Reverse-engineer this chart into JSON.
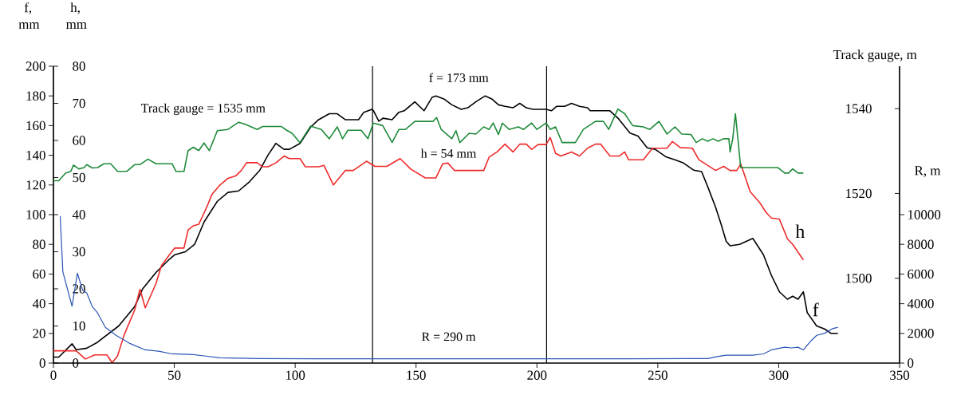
{
  "chart_data": [
    {
      "type": "line",
      "ylabel": "f, mm",
      "y2label": "h, mm",
      "y3label": "Track gauge, m",
      "xlim": [
        0,
        350
      ],
      "xticks": [
        0,
        50,
        100,
        150,
        200,
        250,
        300,
        350
      ],
      "ylim": [
        0,
        200
      ],
      "yticks": [
        0,
        20,
        40,
        60,
        80,
        100,
        120,
        140,
        160,
        180,
        200
      ],
      "y2lim": [
        0,
        80
      ],
      "y2ticks": [
        0,
        10,
        20,
        30,
        40,
        50,
        60,
        70,
        80
      ],
      "y3lim": [
        1480,
        1550
      ],
      "y3ticks": [
        1500,
        1520,
        1540
      ],
      "ref_lines": [
        {
          "axis": "x",
          "value": 132
        },
        {
          "axis": "x",
          "value": 204
        }
      ],
      "annotations": [
        "Track gauge = 1535 mm",
        "f = 173 mm",
        "h = 54 mm",
        "R = 290 m"
      ],
      "series": [
        {
          "name": "f",
          "color": "#000000",
          "x": [
            0,
            2.2,
            7.7,
            9.4,
            13.8,
            18.2,
            27,
            33.6,
            36.9,
            42.4,
            48,
            50.2,
            54.6,
            58.4,
            62.3,
            67.8,
            72.2,
            76.6,
            81,
            85.4,
            88.7,
            92,
            95.4,
            97.6,
            102,
            106.4,
            109.7,
            114.1,
            117.4,
            120.7,
            126.2,
            128.4,
            131.8,
            132.4,
            134.6,
            136.3,
            140.1,
            142.9,
            145.1,
            149.5,
            153.3,
            156.6,
            158.2,
            161.5,
            164.8,
            168.7,
            171.4,
            174.7,
            178.6,
            181.3,
            184.1,
            186.8,
            190.1,
            192.9,
            195.6,
            198.4,
            203.8,
            206,
            208.2,
            211.5,
            214.3,
            217.6,
            220.9,
            222,
            228.6,
            230.2,
            233.5,
            238.5,
            241.8,
            245.6,
            248.9,
            253.3,
            257.1,
            260.4,
            264.8,
            268.1,
            270.6,
            273.9,
            276.1,
            278.3,
            279.9,
            283.8,
            289.3,
            293.7,
            297,
            300.3,
            303.6,
            305.8,
            308,
            310.2,
            311.8,
            315.7,
            319,
            321.7,
            324.5
          ],
          "values": [
            4,
            4,
            13,
            9,
            10,
            14,
            25,
            38,
            50,
            61,
            70,
            73,
            75,
            80,
            95,
            109,
            115,
            116,
            122,
            130,
            140,
            148,
            144,
            144,
            148,
            159,
            164,
            168,
            168,
            164,
            164,
            169,
            171,
            170,
            163,
            165,
            164,
            169,
            170,
            176,
            170,
            179,
            180,
            178,
            174,
            171,
            172,
            176,
            180,
            178,
            174,
            173,
            172,
            175,
            172,
            171,
            171,
            170,
            173,
            173,
            175,
            173,
            172,
            170,
            170,
            170,
            165,
            155,
            153,
            145,
            144,
            139,
            137,
            135,
            130,
            129,
            119,
            105,
            94,
            82,
            79,
            80,
            84,
            73,
            59,
            48,
            43,
            45,
            43,
            48,
            34,
            25,
            23,
            20,
            20
          ]
        },
        {
          "name": "h",
          "color": "#ee2b2b",
          "axis": "y2",
          "x": [
            0,
            9.4,
            13.2,
            17.1,
            22.1,
            24.3,
            26.5,
            29.2,
            33.6,
            35.8,
            38,
            42.4,
            44.7,
            48,
            50.2,
            54,
            55.7,
            57.9,
            60.1,
            63.4,
            65.6,
            68.9,
            72.2,
            75.5,
            77.7,
            79.9,
            84.3,
            86.5,
            88.8,
            92.1,
            95.4,
            97.6,
            102,
            104.2,
            109.7,
            111.9,
            115.8,
            120.7,
            124,
            129.5,
            133,
            137.9,
            143.4,
            147.8,
            153.8,
            158.2,
            161,
            163.2,
            165.9,
            178,
            180.2,
            183.5,
            186.8,
            190.1,
            192.9,
            195.6,
            197.8,
            200.5,
            203.8,
            205.5,
            207.7,
            209.9,
            214.3,
            217.6,
            220.9,
            224.2,
            226.4,
            230.2,
            234.1,
            236.3,
            237.9,
            244,
            247.8,
            253.8,
            256,
            259.3,
            264.3,
            267,
            273.9,
            277.2,
            279.9,
            282.7,
            284.3,
            288.2,
            292,
            294.8,
            297,
            300.3,
            303.6,
            305.8,
            310.2
          ],
          "values": [
            3.3,
            3.3,
            1.1,
            2.2,
            2.2,
            0.1,
            1.9,
            7.5,
            14.3,
            19.9,
            14.9,
            21.4,
            26.3,
            29.2,
            31,
            31,
            35.9,
            37,
            37.4,
            42,
            45.5,
            48,
            49.8,
            50.5,
            51.9,
            54,
            54,
            52.9,
            52.9,
            54,
            55.8,
            55.1,
            55.1,
            52.9,
            52.9,
            53.3,
            48,
            51.9,
            51.9,
            54.4,
            53,
            53,
            55.1,
            52.3,
            49.9,
            49.9,
            53.7,
            53.9,
            51.9,
            51.9,
            55.5,
            56.9,
            59,
            56.9,
            59,
            59,
            57.6,
            58.9,
            58.9,
            60.8,
            56.5,
            55.8,
            56.9,
            55.8,
            57.9,
            59,
            59,
            55.8,
            55.8,
            56.9,
            54.8,
            54.8,
            57.9,
            57.9,
            59.7,
            58.1,
            57.9,
            54.8,
            51.9,
            53,
            51.9,
            51.9,
            53.7,
            46.2,
            43.4,
            40.6,
            39.1,
            38.8,
            33.5,
            32,
            27.8
          ]
        },
        {
          "color": "#1f8a3a",
          "axis": "y3",
          "x": [
            0,
            2.2,
            5,
            7.2,
            8.3,
            10.5,
            12.7,
            13.8,
            16,
            18.2,
            20.9,
            23.7,
            26.5,
            30.3,
            33.6,
            35.8,
            39.1,
            42.4,
            49.1,
            50.7,
            54,
            55.7,
            57.9,
            60.1,
            62.3,
            64.5,
            67.8,
            72.2,
            76.6,
            79.4,
            84.3,
            86.5,
            94.2,
            96.5,
            98.7,
            102,
            106.4,
            110.8,
            114.1,
            117.4,
            119.6,
            121.8,
            127.3,
            130.1,
            132.3,
            136.2,
            140.1,
            142.9,
            145.6,
            149.5,
            157.1,
            158.5,
            160.4,
            164.8,
            166.5,
            168.1,
            172,
            174.7,
            178,
            180.2,
            181.9,
            184.1,
            185.7,
            188.5,
            192.3,
            194.5,
            197.8,
            200,
            203.8,
            205.5,
            207.7,
            210.4,
            215.9,
            219.2,
            224.2,
            227.5,
            229.7,
            233.5,
            236.3,
            239.6,
            244,
            246.7,
            250.5,
            253.8,
            257.1,
            259.9,
            263.7,
            265.9,
            268.4,
            270.6,
            272.8,
            275,
            277.2,
            279.4,
            279.9,
            281,
            282.1,
            284.3,
            299.7,
            302.5,
            304.1,
            305.8,
            308,
            310.2
          ],
          "values": [
            1523,
            1523,
            1524.8,
            1525.2,
            1526.7,
            1525.8,
            1526.1,
            1526.8,
            1526,
            1526.1,
            1527,
            1527,
            1525.2,
            1525.2,
            1526.8,
            1526.8,
            1528.1,
            1527,
            1527,
            1525.2,
            1525.2,
            1530.1,
            1530.9,
            1530.1,
            1531.9,
            1530.1,
            1534.8,
            1535.1,
            1536.8,
            1536.3,
            1535.1,
            1535.8,
            1535.8,
            1534.9,
            1534.2,
            1532,
            1535.9,
            1535.1,
            1532.9,
            1535.7,
            1532.9,
            1534.9,
            1534.9,
            1532.9,
            1536.6,
            1536,
            1532,
            1535.1,
            1535.1,
            1537,
            1537,
            1537.9,
            1535.1,
            1532.9,
            1534.8,
            1532,
            1534.2,
            1534,
            1535.7,
            1535.1,
            1536.6,
            1533.9,
            1536.6,
            1535.1,
            1535.7,
            1535.1,
            1536.6,
            1535.1,
            1536.6,
            1535.1,
            1535.7,
            1532,
            1532,
            1535.1,
            1537,
            1537,
            1535.1,
            1539.9,
            1538.8,
            1536,
            1535.7,
            1535.1,
            1537,
            1534,
            1535.7,
            1534,
            1533.9,
            1532,
            1532.9,
            1532.3,
            1532.9,
            1532.3,
            1532.9,
            1532.9,
            1529.8,
            1532.9,
            1538.8,
            1526.1,
            1526.1,
            1524.8,
            1524.8,
            1525.8,
            1524.8,
            1524.8
          ]
        }
      ]
    },
    {
      "type": "line",
      "ylabel": "R, m",
      "tick_labels": "y",
      "xlim": [
        0,
        350
      ],
      "ylim": [
        0,
        20000
      ],
      "yticks": [
        0,
        2000,
        4000,
        6000,
        8000,
        10000
      ],
      "series": [
        {
          "color": "#2a55b5",
          "x": [
            2.8,
            3.9,
            7.7,
            9.9,
            12.1,
            13.8,
            16,
            18.2,
            21.5,
            25.9,
            31.4,
            38,
            43.5,
            49.1,
            57.9,
            68.9,
            85.4,
            107.5,
            136.2,
            204,
            239.6,
            261.8,
            270.6,
            275,
            278.3,
            289.3,
            293.7,
            297,
            302.5,
            305.2,
            308,
            310.2,
            313.5,
            315.7,
            319,
            322.3,
            324.5
          ],
          "values": [
            9900,
            6150,
            3830,
            6060,
            4900,
            4720,
            3830,
            3390,
            2410,
            1870,
            1340,
            890,
            800,
            620,
            570,
            360,
            300,
            290,
            290,
            290,
            290,
            300,
            300,
            450,
            530,
            530,
            620,
            890,
            1070,
            1020,
            1070,
            890,
            1520,
            1870,
            2010,
            2320,
            2410
          ]
        }
      ]
    }
  ]
}
